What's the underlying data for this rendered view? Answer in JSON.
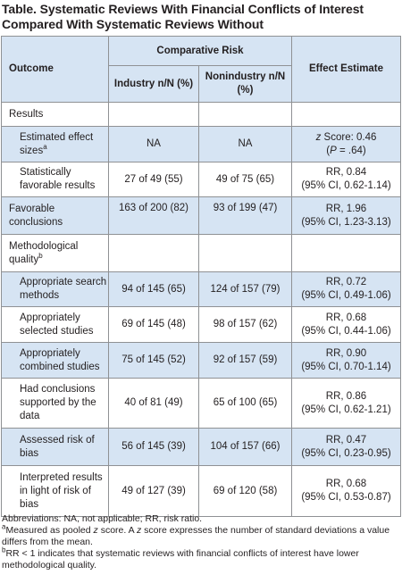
{
  "title": "Table. Systematic Reviews With Financial Conflicts of Interest Compared With Systematic Reviews Without",
  "header": {
    "outcome": "Outcome",
    "comparative_risk": "Comparative Risk",
    "industry": "Industry n/N (%)",
    "nonindustry": "Nonindustry n/N (%)",
    "effect": "Effect Estimate"
  },
  "rows": [
    {
      "label": "Results",
      "industry": "",
      "nonindustry": "",
      "effect": ""
    },
    {
      "label": "Estimated effect sizes",
      "sup": "a",
      "industry": "NA",
      "nonindustry": "NA",
      "effect_pre_italic": "z",
      "effect_line1": " Score: 0.46",
      "effect_line2_pre": "(",
      "effect_line2_italic": "P",
      "effect_line2_post": " = .64)"
    },
    {
      "label": "Statistically favorable results",
      "industry": "27 of 49 (55)",
      "nonindustry": "49 of 75 (65)",
      "effect_line1": "RR, 0.84",
      "effect_line2": "(95% CI, 0.62-1.14)"
    },
    {
      "label": "Favorable conclusions",
      "industry": "163 of 200 (82)",
      "nonindustry": "93 of 199 (47)",
      "effect_line1": "RR, 1.96",
      "effect_line2": "(95% CI, 1.23-3.13)"
    },
    {
      "label": "Methodological quality",
      "sup": "b",
      "industry": "",
      "nonindustry": "",
      "effect": ""
    },
    {
      "label": "Appropriate search methods",
      "industry": "94 of 145 (65)",
      "nonindustry": "124 of 157 (79)",
      "effect_line1": "RR, 0.72",
      "effect_line2": "(95% CI, 0.49-1.06)"
    },
    {
      "label": "Appropriately selected studies",
      "industry": "69 of 145 (48)",
      "nonindustry": "98 of 157 (62)",
      "effect_line1": "RR, 0.68",
      "effect_line2": "(95% CI, 0.44-1.06)"
    },
    {
      "label": "Appropriately combined studies",
      "industry": "75 of 145 (52)",
      "nonindustry": "92 of 157 (59)",
      "effect_line1": "RR, 0.90",
      "effect_line2": "(95% CI, 0.70-1.14)"
    },
    {
      "label": "Had conclusions supported by the data",
      "industry": "40 of 81 (49)",
      "nonindustry": "65 of 100 (65)",
      "effect_line1": "RR, 0.86",
      "effect_line2": "(95% CI, 0.62-1.21)"
    },
    {
      "label": "Assessed risk of bias",
      "industry": "56 of 145 (39)",
      "nonindustry": "104 of 157 (66)",
      "effect_line1": "RR, 0.47",
      "effect_line2": "(95% CI, 0.23-0.95)"
    },
    {
      "label": "Interpreted results in light of risk of bias",
      "industry": "49 of 127 (39)",
      "nonindustry": "69 of 120 (58)",
      "effect_line1": "RR, 0.68",
      "effect_line2": "(95% CI, 0.53-0.87)"
    }
  ],
  "footnotes": {
    "abbrev": "Abbreviations: NA, not applicable; RR, risk ratio.",
    "a_mark": "a",
    "a_pre": "Measured as pooled ",
    "a_z1": "z",
    "a_mid": " score. A ",
    "a_z2": "z",
    "a_post": " score expresses the number of standard deviations a value differs from the mean.",
    "b_mark": "b",
    "b_text": "RR < 1 indicates that systematic reviews with financial conflicts of interest have lower methodological quality."
  },
  "colors": {
    "header_bg": "#d6e4f3",
    "border": "#8f9194",
    "text": "#231f20"
  }
}
